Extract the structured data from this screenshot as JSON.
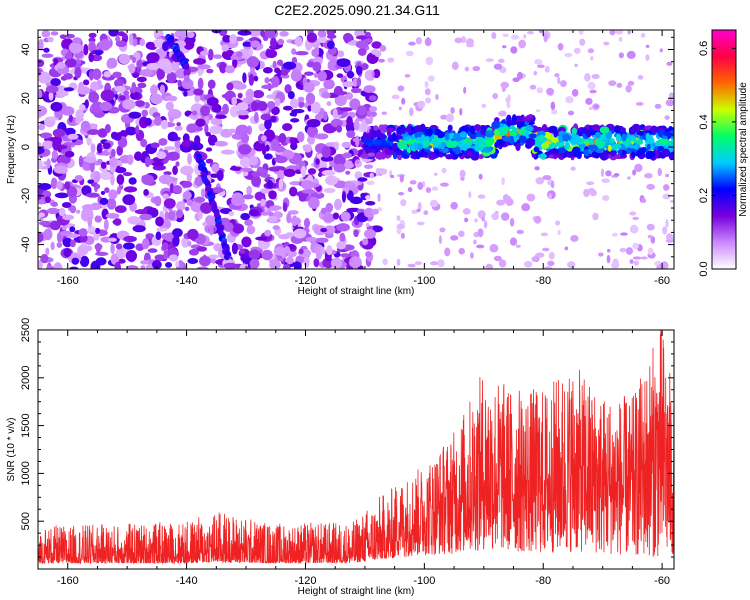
{
  "title": "C2E2.2025.090.21.34.G11",
  "chart_data": [
    {
      "type": "heatmap",
      "xlabel": "Height of straight line (km)",
      "ylabel": "Frequency (Hz)",
      "xlim": [
        -165,
        -58
      ],
      "ylim": [
        -50,
        48
      ],
      "xticks": [
        -160,
        -140,
        -120,
        -100,
        -80,
        -60
      ],
      "yticks": [
        -40,
        -20,
        0,
        20,
        40
      ],
      "colorbar": {
        "label": "Normalized spectral amplitude",
        "range": [
          0,
          0.65
        ],
        "ticks": [
          0.0,
          0.2,
          0.4,
          0.6
        ],
        "colors": [
          "#ffffff",
          "#cc88ff",
          "#7700dd",
          "#0000ff",
          "#00ccff",
          "#00ff66",
          "#ccff00",
          "#ff6600",
          "#ff0044",
          "#ff00cc"
        ]
      },
      "signal_band": {
        "description": "bright band near 0 Hz from -110 km to -58 km",
        "center_hz": 2,
        "halfwidth_hz": 6
      },
      "streaks": [
        {
          "x": [
            -143,
            -140
          ],
          "y": [
            45,
            33
          ]
        },
        {
          "x": [
            -138,
            -133
          ],
          "y": [
            -3,
            -45
          ]
        }
      ]
    },
    {
      "type": "line",
      "xlabel": "Height of straight line (km)",
      "ylabel": "SNR (10 * v/v)",
      "xlim": [
        -165,
        -58
      ],
      "ylim": [
        0,
        2500
      ],
      "xticks": [
        -160,
        -140,
        -120,
        -100,
        -80,
        -60
      ],
      "yticks": [
        500,
        1000,
        1500,
        2000,
        2500
      ],
      "color": "#ee2222",
      "envelope_x": [
        -165,
        -150,
        -140,
        -135,
        -125,
        -112,
        -108,
        -100,
        -95,
        -90,
        -85,
        -80,
        -75,
        -70,
        -65,
        -60,
        -58
      ],
      "envelope_y": [
        450,
        480,
        500,
        620,
        480,
        500,
        750,
        1100,
        1450,
        2100,
        1900,
        1900,
        2150,
        1850,
        1800,
        2600,
        1800
      ],
      "baseline_y": [
        150,
        150,
        150,
        180,
        150,
        160,
        250,
        350,
        400,
        500,
        450,
        400,
        450,
        400,
        350,
        300,
        300
      ],
      "samples": 2600
    }
  ]
}
